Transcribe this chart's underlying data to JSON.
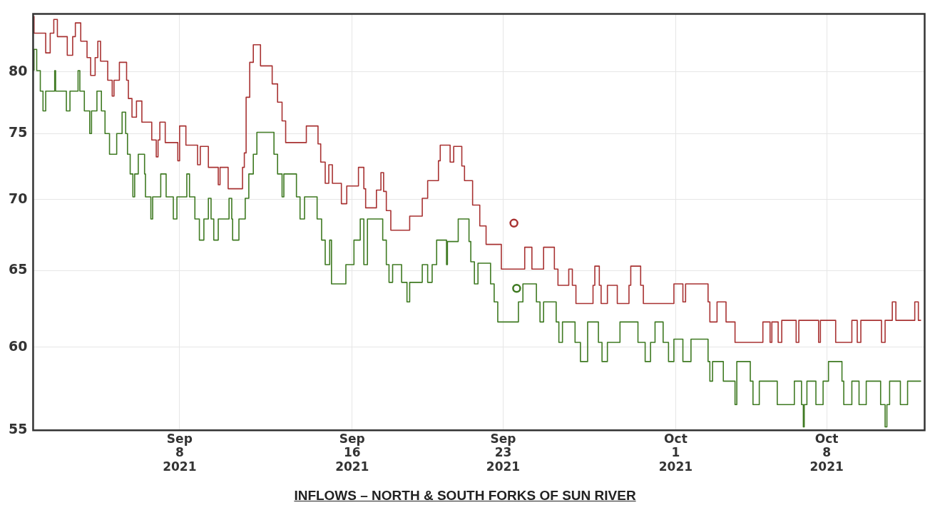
{
  "chart_data": {
    "type": "step",
    "title": "INFLOWS – NORTH & SOUTH FORKS OF SUN RIVER",
    "log": "y",
    "grid": true,
    "legend": false,
    "line_style": "solid",
    "xlim": [
      "2021-09-01T05:00",
      "2021-10-12T13:00"
    ],
    "xticks": [
      {
        "value": "2021-09-08",
        "label": "Sep 8 2021"
      },
      {
        "value": "2021-09-16",
        "label": "Sep 16 2021"
      },
      {
        "value": "2021-09-23",
        "label": "Sep 23 2021"
      },
      {
        "value": "2021-10-01",
        "label": "Oct 1 2021"
      },
      {
        "value": "2021-10-08",
        "label": "Oct 8 2021"
      }
    ],
    "ylim": [
      55,
      85
    ],
    "yticks": [
      55,
      60,
      65,
      70,
      75,
      80
    ],
    "series": [
      {
        "color": "#a83232",
        "x": [
          "2021-09-01T06:00",
          "2021-09-01T19:00",
          "2021-09-02T00:00",
          "2021-09-02T04:00",
          "2021-09-02T08:00",
          "2021-09-02T19:00",
          "2021-09-03T01:00",
          "2021-09-03T04:00",
          "2021-09-03T10:00",
          "2021-09-03T17:00",
          "2021-09-03T21:00",
          "2021-09-04T02:00",
          "2021-09-04T05:00",
          "2021-09-04T08:00",
          "2021-09-04T16:00",
          "2021-09-04T21:00",
          "2021-09-04T23:00",
          "2021-09-05T05:00",
          "2021-09-05T13:00",
          "2021-09-05T15:00",
          "2021-09-05T19:00",
          "2021-09-06T00:00",
          "2021-09-06T06:00",
          "2021-09-06T17:00",
          "2021-09-06T22:00",
          "2021-09-07T00:00",
          "2021-09-07T02:00",
          "2021-09-07T08:00",
          "2021-09-07T22:00",
          "2021-09-08T00:00",
          "2021-09-08T07:00",
          "2021-09-08T20:00",
          "2021-09-08T23:00",
          "2021-09-09T08:00",
          "2021-09-09T19:00",
          "2021-09-09T21:00",
          "2021-09-10T06:00",
          "2021-09-10T22:00",
          "2021-09-11T00:00",
          "2021-09-11T02:00",
          "2021-09-11T06:00",
          "2021-09-11T10:00",
          "2021-09-11T18:00",
          "2021-09-12T07:00",
          "2021-09-12T13:00",
          "2021-09-12T18:00",
          "2021-09-12T22:00",
          "2021-09-13T21:00",
          "2021-09-14T10:00",
          "2021-09-14T13:00",
          "2021-09-14T18:00",
          "2021-09-14T22:00",
          "2021-09-15T02:00",
          "2021-09-15T12:00",
          "2021-09-15T18:00",
          "2021-09-16T07:00",
          "2021-09-16T13:00",
          "2021-09-16T15:00",
          "2021-09-17T03:00",
          "2021-09-17T08:00",
          "2021-09-17T11:00",
          "2021-09-17T14:00",
          "2021-09-17T19:00",
          "2021-09-18T16:00",
          "2021-09-19T06:00",
          "2021-09-19T12:00",
          "2021-09-20T00:00",
          "2021-09-20T02:00",
          "2021-09-20T13:00",
          "2021-09-20T17:00",
          "2021-09-21T02:00",
          "2021-09-21T05:00",
          "2021-09-21T14:00",
          "2021-09-21T22:00",
          "2021-09-22T05:00",
          "2021-09-22T22:00",
          "2021-09-24T00:00",
          "2021-09-24T08:00",
          "2021-09-24T21:00",
          "2021-09-25T09:00",
          "2021-09-25T13:00",
          "2021-09-26T01:00",
          "2021-09-26T05:00",
          "2021-09-26T09:00",
          "2021-09-27T04:00",
          "2021-09-27T06:00",
          "2021-09-27T11:00",
          "2021-09-27T13:00",
          "2021-09-27T20:00",
          "2021-09-28T07:00",
          "2021-09-28T20:00",
          "2021-09-28T22:00",
          "2021-09-29T09:00",
          "2021-09-29T12:00",
          "2021-09-30T22:00",
          "2021-10-01T08:00",
          "2021-10-01T11:00",
          "2021-10-02T12:00",
          "2021-10-02T14:00",
          "2021-10-02T22:00",
          "2021-10-03T08:00",
          "2021-10-03T18:00",
          "2021-10-05T01:00",
          "2021-10-05T09:00",
          "2021-10-05T11:00",
          "2021-10-05T18:00",
          "2021-10-05T22:00",
          "2021-10-06T14:00",
          "2021-10-06T17:00",
          "2021-10-07T15:00",
          "2021-10-07T17:00",
          "2021-10-08T10:00",
          "2021-10-09T04:00",
          "2021-10-09T10:00",
          "2021-10-09T14:00",
          "2021-10-10T13:00",
          "2021-10-10T17:00",
          "2021-10-11T01:00",
          "2021-10-11T05:00",
          "2021-10-12T02:00",
          "2021-10-12T06:00",
          "2021-10-12T09:00"
        ],
        "values": [
          84.8,
          83.3,
          81.6,
          83.3,
          84.5,
          83.0,
          81.4,
          83.0,
          84.2,
          82.6,
          81.2,
          79.7,
          81.2,
          82.6,
          80.9,
          79.3,
          78.0,
          79.3,
          80.8,
          79.3,
          77.8,
          76.3,
          77.6,
          75.9,
          74.5,
          73.2,
          74.5,
          75.9,
          74.3,
          72.9,
          75.6,
          74.1,
          72.6,
          74.0,
          72.4,
          71.1,
          72.4,
          70.8,
          72.4,
          73.5,
          77.9,
          80.8,
          82.3,
          80.5,
          79.0,
          77.5,
          76.0,
          74.3,
          75.6,
          74.2,
          72.8,
          71.2,
          72.6,
          71.2,
          69.7,
          71.0,
          72.4,
          70.8,
          69.4,
          70.7,
          72.0,
          70.6,
          69.2,
          67.8,
          68.8,
          70.1,
          71.4,
          72.9,
          74.1,
          72.8,
          74.0,
          72.5,
          71.4,
          69.6,
          68.1,
          66.8,
          65.1,
          66.6,
          65.1,
          66.6,
          65.1,
          64.0,
          65.1,
          64.0,
          62.8,
          64.0,
          65.3,
          64.0,
          62.8,
          64.0,
          62.8,
          64.0,
          65.3,
          64.0,
          62.8,
          64.1,
          62.9,
          64.1,
          62.9,
          61.6,
          62.9,
          61.6,
          60.3,
          61.6,
          60.3,
          61.6,
          60.3,
          61.7,
          60.3,
          61.7,
          60.3,
          61.7,
          60.3,
          61.7,
          60.3,
          61.7,
          60.3,
          61.7,
          62.9,
          61.7,
          62.9,
          61.7
        ]
      },
      {
        "color": "#3f7a22",
        "x": [
          "2021-09-01T06:00",
          "2021-09-01T09:00",
          "2021-09-01T13:00",
          "2021-09-01T16:00",
          "2021-09-01T19:00",
          "2021-09-02T05:00",
          "2021-09-02T06:00",
          "2021-09-02T18:00",
          "2021-09-02T22:00",
          "2021-09-03T07:00",
          "2021-09-03T09:00",
          "2021-09-03T14:00",
          "2021-09-03T20:00",
          "2021-09-03T22:00",
          "2021-09-04T04:00",
          "2021-09-04T09:00",
          "2021-09-04T13:00",
          "2021-09-04T18:00",
          "2021-09-05T02:00",
          "2021-09-05T08:00",
          "2021-09-05T12:00",
          "2021-09-05T14:00",
          "2021-09-05T17:00",
          "2021-09-05T20:00",
          "2021-09-05T22:00",
          "2021-09-06T02:00",
          "2021-09-06T09:00",
          "2021-09-06T10:00",
          "2021-09-06T16:00",
          "2021-09-06T18:00",
          "2021-09-07T03:00",
          "2021-09-07T09:00",
          "2021-09-07T17:00",
          "2021-09-07T21:00",
          "2021-09-08T08:00",
          "2021-09-08T11:00",
          "2021-09-08T17:00",
          "2021-09-08T22:00",
          "2021-09-09T03:00",
          "2021-09-09T08:00",
          "2021-09-09T11:00",
          "2021-09-09T14:00",
          "2021-09-09T19:00",
          "2021-09-10T07:00",
          "2021-09-10T10:00",
          "2021-09-10T11:00",
          "2021-09-10T18:00",
          "2021-09-11T01:00",
          "2021-09-11T05:00",
          "2021-09-11T10:00",
          "2021-09-11T14:00",
          "2021-09-12T09:00",
          "2021-09-12T13:00",
          "2021-09-12T18:00",
          "2021-09-12T20:00",
          "2021-09-13T10:00",
          "2021-09-13T14:00",
          "2021-09-13T19:00",
          "2021-09-14T09:00",
          "2021-09-14T14:00",
          "2021-09-14T18:00",
          "2021-09-14T23:00",
          "2021-09-15T01:00",
          "2021-09-15T17:00",
          "2021-09-16T02:00",
          "2021-09-16T09:00",
          "2021-09-16T13:00",
          "2021-09-16T17:00",
          "2021-09-17T10:00",
          "2021-09-17T14:00",
          "2021-09-17T17:00",
          "2021-09-17T21:00",
          "2021-09-18T07:00",
          "2021-09-18T13:00",
          "2021-09-18T16:00",
          "2021-09-19T06:00",
          "2021-09-19T12:00",
          "2021-09-19T17:00",
          "2021-09-19T22:00",
          "2021-09-20T09:00",
          "2021-09-20T10:00",
          "2021-09-20T22:00",
          "2021-09-21T10:00",
          "2021-09-21T12:00",
          "2021-09-21T16:00",
          "2021-09-21T20:00",
          "2021-09-22T10:00",
          "2021-09-22T14:00",
          "2021-09-22T18:00",
          "2021-09-23T17:00",
          "2021-09-23T22:00",
          "2021-09-24T13:00",
          "2021-09-24T17:00",
          "2021-09-24T21:00",
          "2021-09-25T11:00",
          "2021-09-25T14:00",
          "2021-09-25T18:00",
          "2021-09-26T08:00",
          "2021-09-26T14:00",
          "2021-09-26T22:00",
          "2021-09-27T10:00",
          "2021-09-27T14:00",
          "2021-09-27T20:00",
          "2021-09-28T10:00",
          "2021-09-29T06:00",
          "2021-09-29T14:00",
          "2021-09-29T20:00",
          "2021-09-30T01:00",
          "2021-09-30T10:00",
          "2021-09-30T16:00",
          "2021-09-30T22:00",
          "2021-10-01T08:00",
          "2021-10-01T17:00",
          "2021-10-02T12:00",
          "2021-10-02T14:00",
          "2021-10-02T17:00",
          "2021-10-03T05:00",
          "2021-10-03T18:00",
          "2021-10-03T20:00",
          "2021-10-04T11:00",
          "2021-10-04T14:00",
          "2021-10-04T21:00",
          "2021-10-05T17:00",
          "2021-10-06T12:00",
          "2021-10-06T20:00",
          "2021-10-06T22:00",
          "2021-10-06T23:00",
          "2021-10-07T02:00",
          "2021-10-07T12:00",
          "2021-10-07T20:00",
          "2021-10-08T02:00",
          "2021-10-08T17:00",
          "2021-10-08T19:00",
          "2021-10-09T04:00",
          "2021-10-09T12:00",
          "2021-10-09T20:00",
          "2021-10-10T12:00",
          "2021-10-10T17:00",
          "2021-10-10T19:00",
          "2021-10-10T22:00",
          "2021-10-11T10:00",
          "2021-10-11T18:00",
          "2021-10-12T02:00",
          "2021-10-12T09:00"
        ],
        "values": [
          80.1,
          81.9,
          80.1,
          78.4,
          76.8,
          78.4,
          80.1,
          78.4,
          76.8,
          78.4,
          80.1,
          78.4,
          76.8,
          75.0,
          76.8,
          78.4,
          76.8,
          75.0,
          73.4,
          75.0,
          76.7,
          75.0,
          73.4,
          71.9,
          70.2,
          71.9,
          73.4,
          71.9,
          70.2,
          68.6,
          70.2,
          71.9,
          70.2,
          68.6,
          70.2,
          71.9,
          70.2,
          68.6,
          67.1,
          68.6,
          70.1,
          68.6,
          67.1,
          68.6,
          70.1,
          68.6,
          67.1,
          68.6,
          70.1,
          71.9,
          73.4,
          75.1,
          73.4,
          71.9,
          70.2,
          71.9,
          70.2,
          68.6,
          70.2,
          68.6,
          67.1,
          65.4,
          67.1,
          64.1,
          65.4,
          67.1,
          68.6,
          65.4,
          68.6,
          67.1,
          65.4,
          64.2,
          65.4,
          64.2,
          62.9,
          64.2,
          65.4,
          64.2,
          65.4,
          67.1,
          65.4,
          67.0,
          68.6,
          67.0,
          65.6,
          64.1,
          65.5,
          64.1,
          62.9,
          61.6,
          62.9,
          64.1,
          62.9,
          61.6,
          62.9,
          61.6,
          60.3,
          61.6,
          60.3,
          59.1,
          61.6,
          60.3,
          59.1,
          60.3,
          61.6,
          60.3,
          59.1,
          60.3,
          61.6,
          60.3,
          59.1,
          60.5,
          59.1,
          60.5,
          59.1,
          57.9,
          59.1,
          57.9,
          56.5,
          59.1,
          57.9,
          56.5,
          57.9,
          56.5,
          57.9,
          56.5,
          55.2,
          56.5,
          57.9,
          56.5,
          57.9,
          59.1,
          57.9,
          56.5,
          57.9,
          56.5,
          57.9,
          56.5,
          55.2,
          56.5,
          57.9,
          56.5,
          57.9,
          57.9
        ]
      },
      {
        "type": "scatter",
        "marker": "circle",
        "color": "#a83232",
        "x": [
          "2021-09-23T12:00"
        ],
        "values": [
          68.3
        ]
      },
      {
        "type": "scatter",
        "marker": "circle",
        "color": "#3f7a22",
        "x": [
          "2021-09-23T15:00"
        ],
        "values": [
          63.8
        ]
      }
    ]
  }
}
